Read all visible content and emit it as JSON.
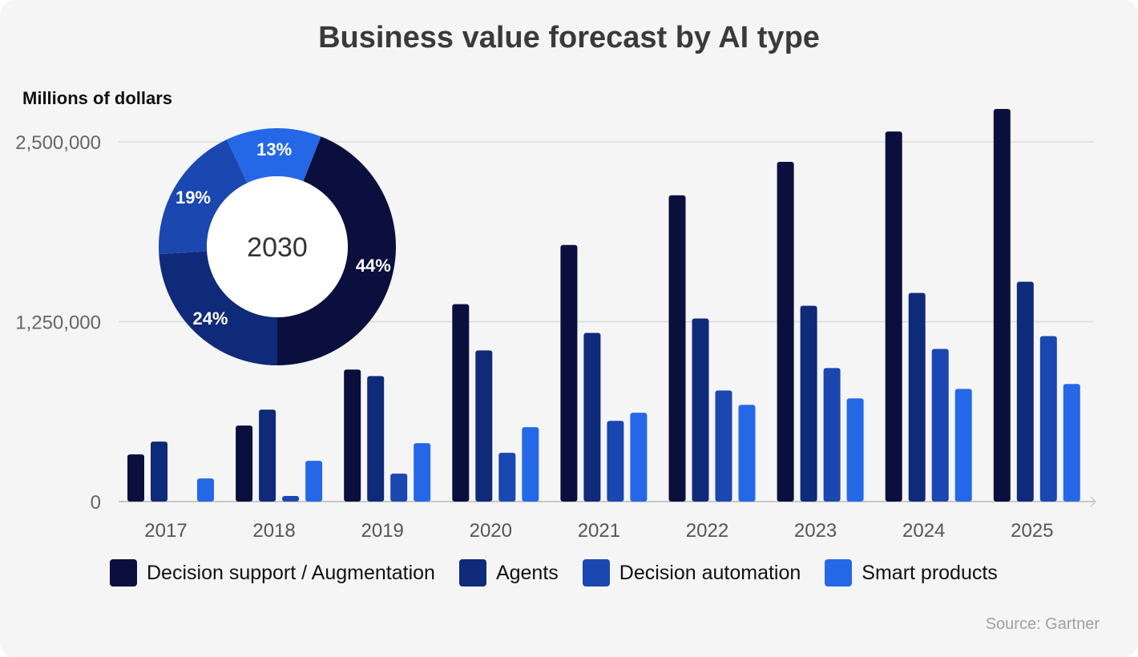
{
  "chart_data": {
    "type": "bar",
    "title": "Business value forecast by AI type",
    "ylabel": "Millions of dollars",
    "ylim": [
      0,
      2500000
    ],
    "yticks": [
      0,
      1250000,
      2500000
    ],
    "ytick_labels": [
      "0",
      "1,250,000",
      "2,500,000"
    ],
    "grid": true,
    "legend_position": "bottom",
    "categories": [
      "2017",
      "2018",
      "2019",
      "2020",
      "2021",
      "2022",
      "2023",
      "2024",
      "2025"
    ],
    "series": [
      {
        "name": "Decision support / Augmentation",
        "color": "#0a0f3d",
        "values": [
          328000,
          528000,
          917000,
          1372000,
          1783000,
          2128000,
          2361000,
          2572000,
          2728000
        ]
      },
      {
        "name": "Agents",
        "color": "#0f2a78",
        "values": [
          417000,
          639000,
          872000,
          1050000,
          1172000,
          1272000,
          1361000,
          1450000,
          1528000
        ]
      },
      {
        "name": "Decision automation",
        "color": "#1a47b0",
        "values": [
          0,
          39000,
          194000,
          339000,
          561000,
          772000,
          928000,
          1061000,
          1150000
        ]
      },
      {
        "name": "Smart products",
        "color": "#2468e8",
        "values": [
          161000,
          283000,
          406000,
          517000,
          617000,
          672000,
          717000,
          783000,
          817000
        ]
      }
    ],
    "inset": {
      "type": "pie",
      "center_label": "2030",
      "slices": [
        {
          "series": "Decision support / Augmentation",
          "value": 44,
          "label": "44%"
        },
        {
          "series": "Agents",
          "value": 24,
          "label": "24%"
        },
        {
          "series": "Decision automation",
          "value": 19,
          "label": "19%"
        },
        {
          "series": "Smart products",
          "value": 13,
          "label": "13%"
        }
      ]
    },
    "source": "Source: Gartner"
  }
}
